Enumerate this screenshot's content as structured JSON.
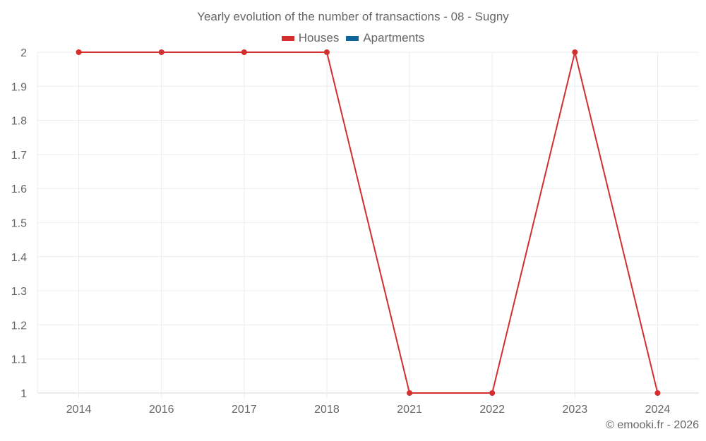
{
  "title": "Yearly evolution of the number of transactions - 08 - Sugny",
  "legend": [
    {
      "label": "Houses",
      "color": "#d32f2f"
    },
    {
      "label": "Apartments",
      "color": "#0d6699"
    }
  ],
  "credit": "© emooki.fr - 2026",
  "chart_data": {
    "type": "line",
    "title": "Yearly evolution of the number of transactions - 08 - Sugny",
    "xlabel": "",
    "ylabel": "",
    "categories": [
      "2014",
      "2016",
      "2017",
      "2018",
      "2021",
      "2022",
      "2023",
      "2024"
    ],
    "series": [
      {
        "name": "Houses",
        "color": "#d32f2f",
        "values": [
          2,
          2,
          2,
          2,
          1,
          1,
          2,
          1
        ]
      },
      {
        "name": "Apartments",
        "color": "#0d6699",
        "values": []
      }
    ],
    "yticks": [
      "1",
      "1.1",
      "1.2",
      "1.3",
      "1.4",
      "1.5",
      "1.6",
      "1.7",
      "1.8",
      "1.9",
      "2"
    ],
    "ylim": [
      1,
      2
    ],
    "grid": true,
    "legend_position": "top"
  }
}
